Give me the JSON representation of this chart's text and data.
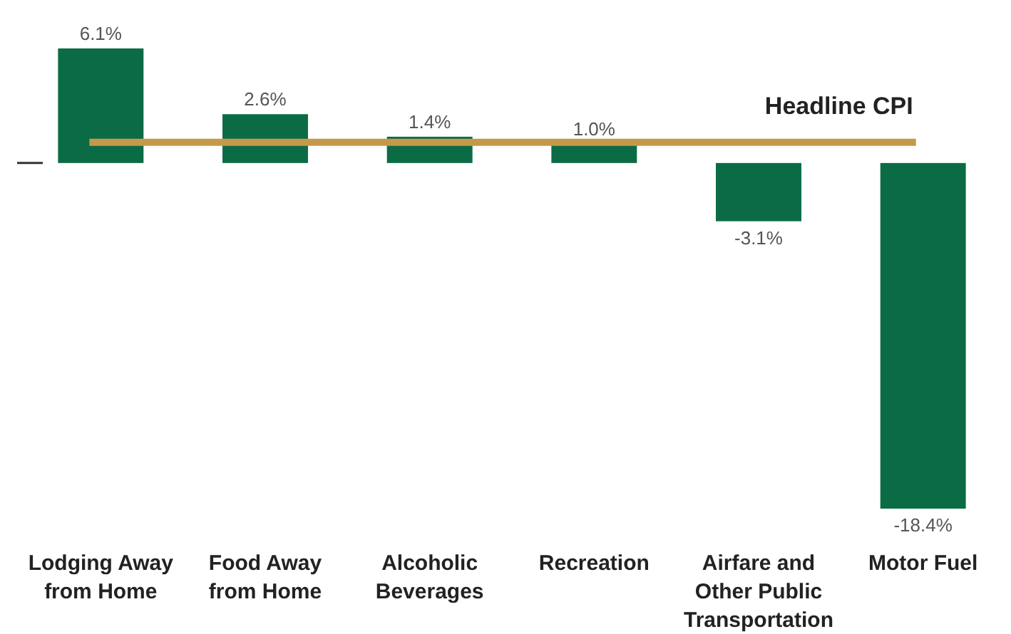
{
  "chart_data": {
    "type": "bar",
    "categories": [
      "Lodging Away from Home",
      "Food Away from Home",
      "Alcoholic Beverages",
      "Recreation",
      "Airfare and Other Public Transportation",
      "Motor Fuel"
    ],
    "values": [
      6.1,
      2.6,
      1.4,
      1.0,
      -3.1,
      -18.4
    ],
    "color": "#0b6b45",
    "value_labels": [
      "6.1%",
      "2.6%",
      "1.4%",
      "1.0%",
      "-3.1%",
      "-18.4%"
    ],
    "ref_lines": [
      {
        "axis": "y",
        "value": 1.1,
        "label": "Headline CPI",
        "color": "#c49a4a"
      }
    ]
  }
}
